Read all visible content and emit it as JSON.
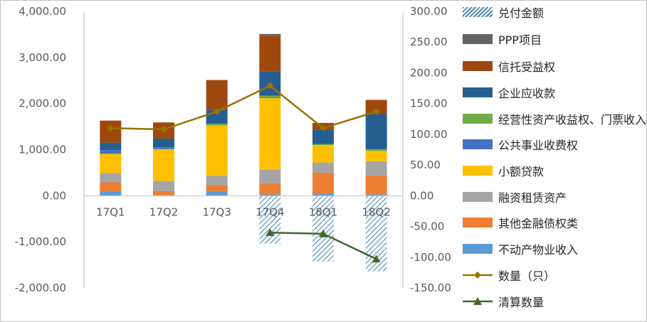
{
  "chart_data": {
    "type": "bar",
    "categories": [
      "17Q1",
      "17Q2",
      "17Q3",
      "17Q4",
      "18Q1",
      "18Q2"
    ],
    "left_axis": {
      "ylim": [
        -2000,
        4000
      ],
      "ticks": [
        "4,000.00",
        "3,000.00",
        "2,000.00",
        "1,000.00",
        "0.00",
        "-1,000.00",
        "-2,000.00"
      ]
    },
    "right_axis": {
      "ylim": [
        -150,
        300
      ],
      "ticks": [
        "300.00",
        "250.00",
        "200.00",
        "150.00",
        "100.00",
        "50.00",
        "0.00",
        "-50.00",
        "-100.00",
        "-150.00"
      ]
    },
    "stacked_series": [
      {
        "name": "不动产物业收入",
        "color": "#5b9bd5",
        "values": [
          100,
          10,
          100,
          30,
          50,
          30
        ]
      },
      {
        "name": "其他金融债权类",
        "color": "#ed7d31",
        "values": [
          190,
          90,
          130,
          240,
          450,
          410
        ]
      },
      {
        "name": "融资租赁资产",
        "color": "#a5a5a5",
        "values": [
          200,
          220,
          200,
          300,
          220,
          310
        ]
      },
      {
        "name": "小额贷款",
        "color": "#ffc000",
        "values": [
          420,
          690,
          1090,
          1550,
          380,
          220
        ]
      },
      {
        "name": "公共事业收费权",
        "color": "#4472c4",
        "values": [
          80,
          40,
          0,
          20,
          0,
          0
        ]
      },
      {
        "name": "经营性资产收益权、门票收入",
        "color": "#70ad47",
        "values": [
          0,
          0,
          40,
          30,
          20,
          40
        ]
      },
      {
        "name": "企业应收款",
        "color": "#255e91",
        "values": [
          160,
          190,
          300,
          530,
          310,
          760
        ]
      },
      {
        "name": "信托受益权",
        "color": "#9e480e",
        "values": [
          480,
          350,
          650,
          770,
          150,
          310
        ]
      },
      {
        "name": "PPP项目",
        "color": "#636363",
        "values": [
          0,
          0,
          0,
          40,
          0,
          0
        ]
      }
    ],
    "negative_series": {
      "name": "兑付金额",
      "color": "#4a8bbd",
      "values": [
        0,
        0,
        0,
        -1040,
        -1430,
        -1640
      ]
    },
    "line_series": [
      {
        "name": "数量（只）",
        "color": "#997300",
        "axis": "right",
        "values": [
          110,
          108,
          137,
          179,
          110,
          137
        ]
      },
      {
        "name": "清算数量",
        "color": "#43682b",
        "axis": "right",
        "values": [
          null,
          null,
          null,
          -60,
          -62,
          -103
        ]
      }
    ]
  },
  "legend": [
    {
      "label": "兑付金额",
      "kind": "hatch",
      "color": "#4a8bbd"
    },
    {
      "label": "PPP项目",
      "kind": "box",
      "color": "#636363"
    },
    {
      "label": "信托受益权",
      "kind": "box",
      "color": "#9e480e"
    },
    {
      "label": "企业应收款",
      "kind": "box",
      "color": "#255e91"
    },
    {
      "label": "经营性资产收益权、门票收入",
      "kind": "box",
      "color": "#70ad47"
    },
    {
      "label": "公共事业收费权",
      "kind": "box",
      "color": "#4472c4"
    },
    {
      "label": "小额贷款",
      "kind": "box",
      "color": "#ffc000"
    },
    {
      "label": "融资租赁资产",
      "kind": "box",
      "color": "#a5a5a5"
    },
    {
      "label": "其他金融债权类",
      "kind": "box",
      "color": "#ed7d31"
    },
    {
      "label": "不动产物业收入",
      "kind": "box",
      "color": "#5b9bd5"
    },
    {
      "label": "数量（只）",
      "kind": "line-diamond",
      "color": "#997300"
    },
    {
      "label": "清算数量",
      "kind": "line-triangle",
      "color": "#43682b"
    }
  ]
}
